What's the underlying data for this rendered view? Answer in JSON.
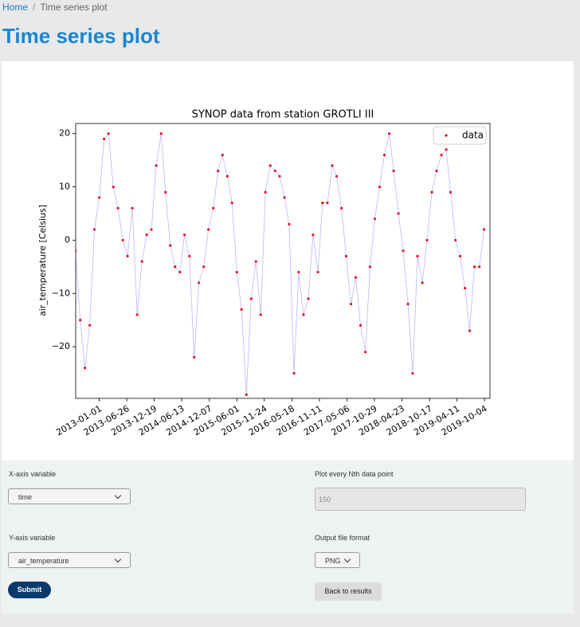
{
  "breadcrumb": {
    "home": "Home",
    "current": "Time series plot"
  },
  "page_title": "Time series plot",
  "chart_data": {
    "type": "line",
    "title": "SYNOP data from station GROTLI III",
    "y_label": "air_temperature [Celsius]",
    "series": [
      {
        "name": "data",
        "color": "#e8101a",
        "line_color": "#b8b8ff",
        "x": [
          "2012-08-01",
          "2012-09-01",
          "2012-10-01",
          "2012-11-01",
          "2012-12-01",
          "2013-01-01",
          "2013-02-01",
          "2013-03-01",
          "2013-04-01",
          "2013-05-01",
          "2013-06-01",
          "2013-07-01",
          "2013-08-01",
          "2013-09-01",
          "2013-10-01",
          "2013-11-01",
          "2013-12-01",
          "2014-01-01",
          "2014-02-01",
          "2014-03-01",
          "2014-04-01",
          "2014-05-01",
          "2014-06-01",
          "2014-07-01",
          "2014-08-01",
          "2014-09-01",
          "2014-10-01",
          "2014-11-01",
          "2014-12-01",
          "2015-01-01",
          "2015-02-01",
          "2015-03-01",
          "2015-04-01",
          "2015-05-01",
          "2015-06-01",
          "2015-07-01",
          "2015-08-01",
          "2015-09-01",
          "2015-10-01",
          "2015-11-01",
          "2015-12-01",
          "2016-01-01",
          "2016-02-01",
          "2016-03-01",
          "2016-04-01",
          "2016-05-01",
          "2016-06-01",
          "2016-07-01",
          "2016-08-01",
          "2016-09-01",
          "2016-10-01",
          "2016-11-01",
          "2016-12-01",
          "2017-01-01",
          "2017-02-01",
          "2017-03-01",
          "2017-04-01",
          "2017-05-01",
          "2017-06-01",
          "2017-07-01",
          "2017-08-01",
          "2017-09-01",
          "2017-10-01",
          "2017-11-01",
          "2017-12-01",
          "2018-01-01",
          "2018-02-01",
          "2018-03-01",
          "2018-04-01",
          "2018-05-01",
          "2018-06-01",
          "2018-07-01",
          "2018-08-01",
          "2018-09-01",
          "2018-10-01",
          "2018-11-01",
          "2018-12-01",
          "2019-01-01",
          "2019-02-01",
          "2019-03-01",
          "2019-04-01",
          "2019-05-01",
          "2019-06-01",
          "2019-07-01",
          "2019-08-01",
          "2019-09-01",
          "2019-10-01"
        ],
        "values": [
          -2,
          -15,
          -24,
          -16,
          2,
          8,
          19,
          20,
          10,
          6,
          0,
          -3,
          6,
          -14,
          -4,
          1,
          2,
          14,
          20,
          9,
          -1,
          -5,
          -6,
          1,
          -3,
          -22,
          -8,
          -5,
          2,
          6,
          13,
          16,
          12,
          7,
          -6,
          -13,
          -29,
          -11,
          -4,
          -14,
          9,
          14,
          13,
          12,
          8,
          3,
          -25,
          -6,
          -14,
          -11,
          1,
          -6,
          7,
          7,
          14,
          12,
          6,
          -3,
          -12,
          -7,
          -16,
          -21,
          -5,
          4,
          10,
          16,
          20,
          13,
          5,
          -2,
          -12,
          -25,
          -3,
          -8,
          0,
          9,
          13,
          16,
          17,
          9,
          0,
          -3,
          -9,
          -17,
          -5,
          -5,
          2
        ]
      }
    ],
    "xlim": [
      "2012-08-03",
      "2019-11-08"
    ],
    "xticks": [
      "2013-01-01",
      "2013-06-26",
      "2013-12-19",
      "2014-06-13",
      "2014-12-07",
      "2015-06-01",
      "2015-11-24",
      "2016-05-18",
      "2016-11-11",
      "2017-05-06",
      "2017-10-29",
      "2018-04-23",
      "2018-10-17",
      "2019-04-11",
      "2019-10-04"
    ],
    "ylim": [
      -29.7,
      21.9
    ],
    "yticks": [
      {
        "value": -20,
        "label": "−20"
      },
      {
        "value": -10,
        "label": "−10"
      },
      0,
      10,
      20
    ],
    "legend": "upper right"
  },
  "form": {
    "x_label": "X-axis variable",
    "x_value": "time",
    "nth_label": "Plot every Nth data point",
    "nth_value": "150",
    "y_label": "Y-axis variable",
    "y_value": "air_temperature",
    "format_label": "Output file format",
    "format_value": "PNG",
    "submit": "Submit",
    "back": "Back to results"
  }
}
